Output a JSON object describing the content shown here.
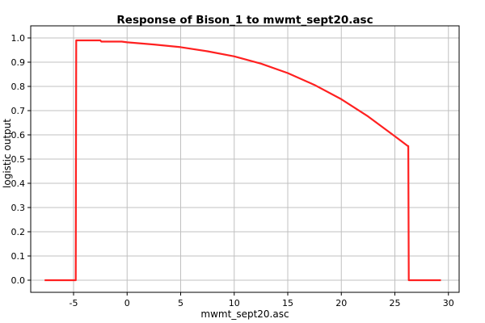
{
  "chart_data": {
    "type": "line",
    "title": "Response of Bison_1 to mwmt_sept20.asc",
    "xlabel": "mwmt_sept20.asc",
    "ylabel": "logistic output",
    "xlim": [
      -9,
      31
    ],
    "ylim": [
      -0.05,
      1.05
    ],
    "x_ticks": [
      -5,
      0,
      5,
      10,
      15,
      20,
      25,
      30
    ],
    "y_ticks": [
      0.0,
      0.1,
      0.2,
      0.3,
      0.4,
      0.5,
      0.6,
      0.7,
      0.8,
      0.9,
      1.0
    ],
    "x_tick_labels": [
      "-5",
      "0",
      "5",
      "10",
      "15",
      "20",
      "25",
      "30"
    ],
    "y_tick_labels": [
      "0.0",
      "0.1",
      "0.2",
      "0.3",
      "0.4",
      "0.5",
      "0.6",
      "0.7",
      "0.8",
      "0.9",
      "1.0"
    ],
    "grid": true,
    "colors": {
      "series": "#ff2020",
      "grid": "#c0c0c0",
      "frame": "#000000"
    },
    "series": [
      {
        "x": [
          -7.7,
          -4.8,
          -4.75,
          -4.7,
          -4.5,
          -2.5,
          -2.4,
          -0.5,
          0,
          2.5,
          5,
          7.5,
          10,
          12.5,
          15,
          17.5,
          20,
          22.5,
          25,
          26.2,
          26.25,
          26.3,
          29.3
        ],
        "y": [
          0.0,
          0.0,
          0.99,
          0.99,
          0.99,
          0.99,
          0.985,
          0.985,
          0.982,
          0.973,
          0.962,
          0.945,
          0.924,
          0.894,
          0.855,
          0.806,
          0.747,
          0.676,
          0.594,
          0.554,
          0.554,
          0.0,
          0.0
        ]
      }
    ]
  }
}
